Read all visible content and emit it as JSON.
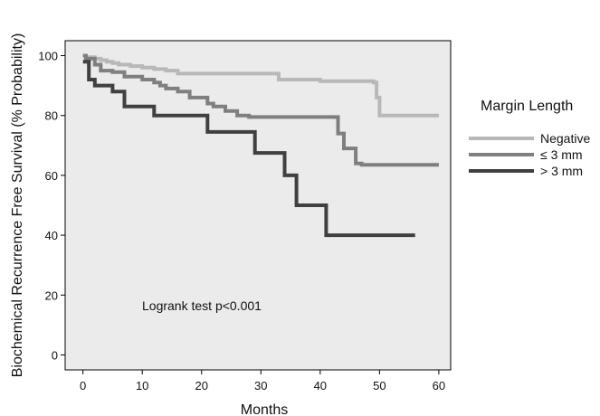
{
  "chart_data": {
    "type": "line",
    "step": true,
    "xlabel": "Months",
    "ylabel": "Biochemical Recurrence Free Survival (% Probability)",
    "xlim": [
      -3,
      62
    ],
    "ylim": [
      -5,
      105
    ],
    "xticks": [
      0,
      10,
      20,
      30,
      40,
      50,
      60
    ],
    "yticks": [
      0,
      20,
      40,
      60,
      80,
      100
    ],
    "grid": false,
    "legend_title": "Margin Length",
    "legend_position": "right",
    "annotation": "Logrank test p<0.001",
    "series": [
      {
        "name": "Negative",
        "color": "#b8b8b8",
        "x": [
          0,
          0.5,
          2,
          3,
          4,
          5,
          6,
          8,
          10,
          12,
          14,
          16,
          33,
          40,
          49,
          49.5,
          50,
          60
        ],
        "y": [
          100,
          99.5,
          99,
          98.5,
          98,
          97.5,
          97,
          96.5,
          96,
          95.5,
          95,
          94,
          92,
          91.5,
          91,
          86,
          80,
          80
        ]
      },
      {
        "name": "≤ 3 mm",
        "color": "#7f7f7f",
        "x": [
          0,
          0.5,
          2,
          3,
          5,
          7,
          10,
          12,
          13,
          14,
          16,
          18,
          21,
          22,
          24,
          26,
          28,
          43,
          44,
          46,
          47,
          60
        ],
        "y": [
          100,
          99,
          97,
          95,
          94.5,
          93,
          92,
          91,
          90,
          89,
          88,
          86,
          84,
          83,
          81.5,
          80,
          79.5,
          74,
          69,
          64,
          63.5,
          63.5
        ]
      },
      {
        "name": "> 3 mm",
        "color": "#404040",
        "x": [
          0,
          1,
          2,
          5,
          7,
          12,
          21,
          29,
          34,
          36,
          41,
          56
        ],
        "y": [
          98,
          92,
          90,
          88,
          83,
          80,
          74.5,
          67.5,
          60,
          50,
          40,
          40
        ]
      }
    ]
  }
}
